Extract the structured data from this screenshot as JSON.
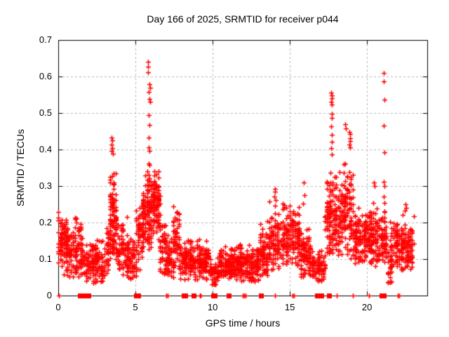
{
  "title": "Day 166 of 2025, SRMTID for receiver p044",
  "x_axis": {
    "label": "GPS time / hours",
    "min": 0,
    "max": 23.9,
    "ticks": [
      {
        "v": 0,
        "label": "0"
      },
      {
        "v": 5,
        "label": "5"
      },
      {
        "v": 10,
        "label": "10"
      },
      {
        "v": 15,
        "label": "15"
      },
      {
        "v": 20,
        "label": "20"
      }
    ]
  },
  "y_axis": {
    "label": "SRMTID / TECUs",
    "min": 0,
    "max": 0.7,
    "ticks": [
      {
        "v": 0,
        "label": "0"
      },
      {
        "v": 0.1,
        "label": "0.1"
      },
      {
        "v": 0.2,
        "label": "0.2"
      },
      {
        "v": 0.3,
        "label": "0.3"
      },
      {
        "v": 0.4,
        "label": "0.4"
      },
      {
        "v": 0.5,
        "label": "0.5"
      },
      {
        "v": 0.6,
        "label": "0.6"
      },
      {
        "v": 0.7,
        "label": "0.7"
      }
    ]
  },
  "chart_data": {
    "type": "scatter",
    "title": "Day 166 of 2025, SRMTID for receiver p044",
    "xlabel": "GPS time / hours",
    "ylabel": "SRMTID / TECUs",
    "xlim": [
      0,
      23.9
    ],
    "ylim": [
      0,
      0.7
    ],
    "grid": {
      "show": true,
      "style": "dashed",
      "color": "#b8b8b8",
      "x_lines": [
        5,
        10,
        15,
        20
      ],
      "y_lines": [
        0.1,
        0.2,
        0.3,
        0.4,
        0.5,
        0.6
      ]
    },
    "legend": "none",
    "marker": "plus",
    "marker_color": "#ff0000",
    "marker_size": 7,
    "axis_color": "#000000",
    "seed": 20250166,
    "x_quantum_hours": 0.12,
    "clusters_format": "[hour_start, hour_end, n_points, y_center, y_spread, y_min, y_max]",
    "clusters": [
      [
        0.0,
        0.35,
        55,
        0.15,
        0.055,
        0.08,
        0.235
      ],
      [
        0.35,
        0.95,
        75,
        0.12,
        0.055,
        0.05,
        0.225
      ],
      [
        0.95,
        1.55,
        80,
        0.13,
        0.06,
        0.05,
        0.24
      ],
      [
        1.55,
        2.15,
        55,
        0.09,
        0.05,
        0.03,
        0.185
      ],
      [
        2.15,
        3.05,
        95,
        0.09,
        0.045,
        0.035,
        0.165
      ],
      [
        3.05,
        3.3,
        25,
        0.12,
        0.05,
        0.06,
        0.22
      ],
      [
        3.3,
        3.75,
        110,
        0.21,
        0.08,
        0.09,
        0.38
      ],
      [
        3.75,
        4.45,
        75,
        0.12,
        0.055,
        0.05,
        0.24
      ],
      [
        4.45,
        5.05,
        65,
        0.1,
        0.05,
        0.04,
        0.22
      ],
      [
        5.05,
        5.45,
        45,
        0.17,
        0.06,
        0.07,
        0.27
      ],
      [
        5.45,
        6.05,
        120,
        0.23,
        0.08,
        0.12,
        0.34
      ],
      [
        6.05,
        6.55,
        100,
        0.25,
        0.06,
        0.14,
        0.345
      ],
      [
        6.55,
        7.0,
        55,
        0.13,
        0.05,
        0.06,
        0.22
      ],
      [
        7.0,
        7.45,
        55,
        0.1,
        0.04,
        0.05,
        0.175
      ],
      [
        7.45,
        7.8,
        50,
        0.16,
        0.055,
        0.07,
        0.245
      ],
      [
        7.8,
        9.8,
        230,
        0.095,
        0.04,
        0.04,
        0.19
      ],
      [
        9.8,
        10.45,
        60,
        0.06,
        0.025,
        0.025,
        0.105
      ],
      [
        10.45,
        11.35,
        115,
        0.085,
        0.03,
        0.045,
        0.135
      ],
      [
        11.35,
        12.25,
        115,
        0.09,
        0.035,
        0.04,
        0.15
      ],
      [
        12.25,
        13.05,
        100,
        0.085,
        0.035,
        0.035,
        0.15
      ],
      [
        13.05,
        13.65,
        75,
        0.11,
        0.05,
        0.05,
        0.22
      ],
      [
        13.65,
        14.35,
        85,
        0.15,
        0.065,
        0.07,
        0.285
      ],
      [
        14.35,
        15.65,
        160,
        0.16,
        0.06,
        0.08,
        0.285
      ],
      [
        15.65,
        16.35,
        90,
        0.11,
        0.05,
        0.05,
        0.21
      ],
      [
        16.35,
        17.3,
        90,
        0.08,
        0.035,
        0.035,
        0.14
      ],
      [
        17.3,
        17.9,
        100,
        0.2,
        0.09,
        0.1,
        0.39
      ],
      [
        17.9,
        19.1,
        170,
        0.23,
        0.085,
        0.1,
        0.4
      ],
      [
        19.1,
        20.15,
        135,
        0.155,
        0.05,
        0.08,
        0.26
      ],
      [
        20.15,
        20.75,
        85,
        0.15,
        0.06,
        0.08,
        0.31
      ],
      [
        20.75,
        21.3,
        60,
        0.15,
        0.05,
        0.09,
        0.26
      ],
      [
        21.3,
        21.6,
        25,
        0.07,
        0.03,
        0.025,
        0.12
      ],
      [
        21.5,
        23.0,
        175,
        0.13,
        0.05,
        0.07,
        0.23
      ]
    ],
    "peak_points": [
      [
        3.45,
        0.432
      ],
      [
        3.5,
        0.425
      ],
      [
        3.47,
        0.414
      ],
      [
        3.52,
        0.404
      ],
      [
        3.44,
        0.396
      ],
      [
        3.55,
        0.388
      ],
      [
        5.8,
        0.64
      ],
      [
        5.83,
        0.627
      ],
      [
        5.8,
        0.612
      ],
      [
        5.9,
        0.578
      ],
      [
        5.95,
        0.57
      ],
      [
        5.88,
        0.558
      ],
      [
        5.9,
        0.538
      ],
      [
        5.94,
        0.531
      ],
      [
        5.87,
        0.494
      ],
      [
        5.9,
        0.467
      ],
      [
        5.88,
        0.432
      ],
      [
        5.85,
        0.405
      ],
      [
        5.9,
        0.397
      ],
      [
        5.84,
        0.362
      ],
      [
        5.89,
        0.357
      ],
      [
        5.86,
        0.33
      ],
      [
        5.9,
        0.322
      ],
      [
        14.02,
        0.292
      ],
      [
        14.06,
        0.284
      ],
      [
        14.0,
        0.271
      ],
      [
        14.08,
        0.261
      ],
      [
        15.9,
        0.31
      ],
      [
        15.93,
        0.275
      ],
      [
        15.88,
        0.252
      ],
      [
        17.68,
        0.556
      ],
      [
        17.7,
        0.548
      ],
      [
        17.72,
        0.54
      ],
      [
        17.69,
        0.531
      ],
      [
        17.71,
        0.524
      ],
      [
        17.7,
        0.498
      ],
      [
        17.74,
        0.487
      ],
      [
        17.68,
        0.463
      ],
      [
        17.7,
        0.44
      ],
      [
        17.73,
        0.421
      ],
      [
        17.67,
        0.403
      ],
      [
        17.7,
        0.386
      ],
      [
        18.6,
        0.47
      ],
      [
        18.63,
        0.458
      ],
      [
        18.86,
        0.448
      ],
      [
        18.9,
        0.442
      ],
      [
        18.88,
        0.431
      ],
      [
        18.92,
        0.423
      ],
      [
        18.87,
        0.414
      ],
      [
        18.91,
        0.406
      ],
      [
        20.45,
        0.31
      ],
      [
        20.5,
        0.3
      ],
      [
        21.1,
        0.61
      ],
      [
        21.1,
        0.586
      ],
      [
        21.12,
        0.536
      ],
      [
        21.1,
        0.465
      ],
      [
        21.13,
        0.392
      ],
      [
        21.1,
        0.312
      ],
      [
        21.14,
        0.3
      ],
      [
        21.1,
        0.272
      ],
      [
        21.12,
        0.253
      ],
      [
        21.11,
        0.228
      ],
      [
        22.45,
        0.232
      ],
      [
        22.5,
        0.25
      ],
      [
        22.55,
        0.24
      ]
    ],
    "zero_square_hours": [
      1.4,
      1.72,
      1.82,
      1.94,
      5.05,
      5.16,
      8.12,
      8.22,
      8.76,
      10.02,
      10.12,
      11.05,
      13.12,
      16.78,
      16.9,
      17.06,
      17.55,
      20.95,
      21.08
    ],
    "zero_plus_hours": [
      0.06,
      7.02,
      7.1,
      9.16,
      9.24,
      11.94,
      12.04,
      12.14,
      14.06,
      15.18,
      15.26,
      18.04,
      19.08,
      20.12,
      21.98,
      22.06
    ]
  }
}
